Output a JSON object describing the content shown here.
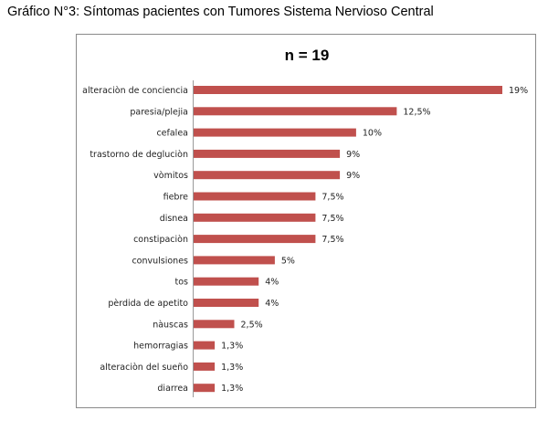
{
  "page": {
    "heading": "Gráfico  N°3: Síntomas pacientes con Tumores Sistema Nervioso Central"
  },
  "chart_data": {
    "type": "bar",
    "orientation": "horizontal",
    "title": "n = 19",
    "xlabel": "",
    "ylabel": "",
    "grid": false,
    "legend": "none",
    "bar_color": "#c0504d",
    "xlim": [
      0,
      19
    ],
    "categories": [
      "alteraciòn de conciencia",
      "paresia/plejia",
      "cefalea",
      "trastorno de degluciòn",
      "vòmitos",
      "fiebre",
      "disnea",
      "constipaciòn",
      "convulsiones",
      "tos",
      "pèrdida de apetito",
      "nàuscas",
      "hemorragias",
      "alteraciòn del sueño",
      "diarrea"
    ],
    "values": [
      19,
      12.5,
      10,
      9,
      9,
      7.5,
      7.5,
      7.5,
      5,
      4,
      4,
      2.5,
      1.3,
      1.3,
      1.3
    ],
    "value_labels": [
      "19%",
      "12,5%",
      "10%",
      "9%",
      "9%",
      "7,5%",
      "7,5%",
      "7,5%",
      "5%",
      "4%",
      "4%",
      "2,5%",
      "1,3%",
      "1,3%",
      "1,3%"
    ]
  }
}
